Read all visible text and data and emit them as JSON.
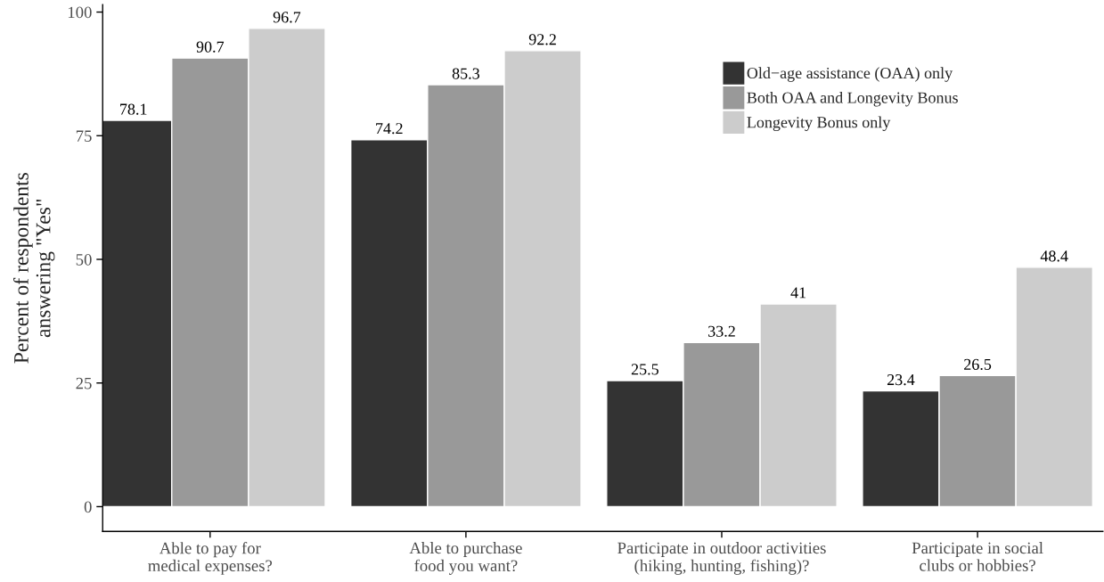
{
  "chart_data": {
    "type": "bar",
    "ylabel": "Percent of respondents\nanswering \"Yes\"",
    "categories": [
      "Able to pay for\nmedical expenses?",
      "Able to purchase\nfood you want?",
      "Participate in outdoor activities\n(hiking, hunting, fishing)?",
      "Participate in social\nclubs or hobbies?"
    ],
    "series": [
      {
        "name": "Old−age assistance (OAA) only",
        "color": "#333333",
        "values": [
          78.1,
          74.2,
          25.5,
          23.4
        ]
      },
      {
        "name": "Both OAA and Longevity Bonus",
        "color": "#999999",
        "values": [
          90.7,
          85.3,
          33.2,
          26.5
        ]
      },
      {
        "name": "Longevity Bonus only",
        "color": "#cccccc",
        "values": [
          96.7,
          92.2,
          41,
          48.4
        ]
      }
    ],
    "ylim": [
      -5,
      101.5
    ],
    "yticks": [
      0,
      25,
      50,
      75,
      100
    ],
    "data_labels": true,
    "grid": false,
    "legend": "top right"
  }
}
